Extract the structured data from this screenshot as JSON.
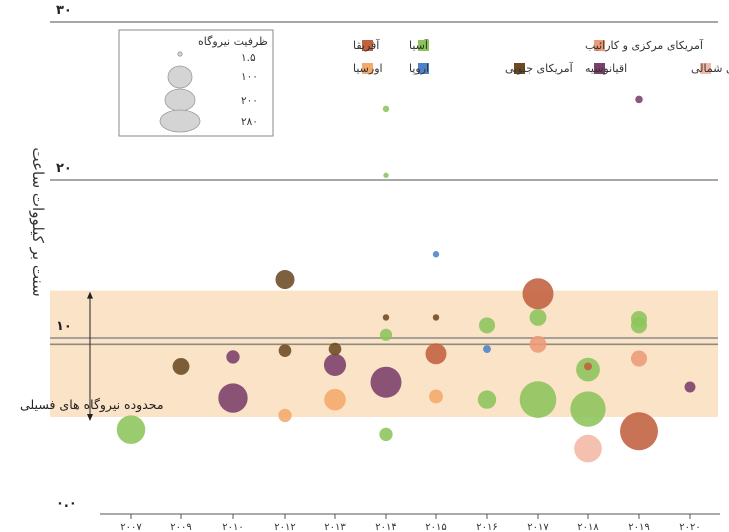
{
  "chart_data": {
    "type": "scatter",
    "ylabel": "سنت بر کیلووات ساعت",
    "y_ticks": [
      "۰.۰",
      "۱۰",
      "۲۰",
      "۳۰"
    ],
    "y_tick_values": [
      0,
      10,
      20,
      30
    ],
    "ylim": [
      0,
      30
    ],
    "x_ticks": [
      "۲۰۰۷",
      "۲۰۰۹",
      "۲۰۱۰",
      "۲۰۱۲",
      "۲۰۱۳",
      "۲۰۱۴",
      "۲۰۱۵",
      "۲۰۱۶",
      "۲۰۱۷",
      "۲۰۱۸",
      "۲۰۱۹",
      "۲۰۲۰"
    ],
    "fossil_range": {
      "label": "محدوده نیروگاه های فسیلی",
      "y_min": 5.0,
      "y_max": 13.0,
      "reference_y": 9.6
    },
    "size_legend": {
      "title": "ظرفیت نیروگاه",
      "entries": [
        {
          "label": "۱.۵",
          "capacity": 1.5
        },
        {
          "label": "۱۰۰",
          "capacity": 100
        },
        {
          "label": "۲۰۰",
          "capacity": 200
        },
        {
          "label": "۲۸۰",
          "capacity": 280
        }
      ]
    },
    "legend_position": "top",
    "series": [
      {
        "name": "آفریقا",
        "color": "#c0603f"
      },
      {
        "name": "آسیا",
        "color": "#8cc45a"
      },
      {
        "name": "آمریکای مرکزی و کارائیب",
        "color": "#ec9a78"
      },
      {
        "name": "اورسیا",
        "color": "#f4a96a"
      },
      {
        "name": "اروپا",
        "color": "#4c83c8"
      },
      {
        "name": "آمریکای جنوبی",
        "color": "#6b4a22"
      },
      {
        "name": "اقیانوسیه",
        "color": "#7a3f6a"
      },
      {
        "name": "آمریکای شمالی",
        "color": "#f2b8a6"
      }
    ],
    "points": [
      {
        "year": "۲۰۰۷",
        "y": 4.2,
        "region": "آسیا",
        "capacity": 150
      },
      {
        "year": "۲۰۰۹",
        "y": 8.2,
        "region": "آمریکای جنوبی",
        "capacity": 45
      },
      {
        "year": "۲۰۱۰",
        "y": 8.8,
        "region": "اقیانوسیه",
        "capacity": 25
      },
      {
        "year": "۲۰۱۰",
        "y": 6.2,
        "region": "اقیانوسیه",
        "capacity": 160
      },
      {
        "year": "۲۰۱۲",
        "y": 13.7,
        "region": "آمریکای جنوبی",
        "capacity": 60
      },
      {
        "year": "۲۰۱۲",
        "y": 9.2,
        "region": "آمریکای جنوبی",
        "capacity": 22
      },
      {
        "year": "۲۰۱۲",
        "y": 5.1,
        "region": "اورسیا",
        "capacity": 25
      },
      {
        "year": "۲۰۱۳",
        "y": 9.3,
        "region": "آمریکای جنوبی",
        "capacity": 22
      },
      {
        "year": "۲۰۱۳",
        "y": 8.3,
        "region": "اقیانوسیه",
        "capacity": 85
      },
      {
        "year": "۲۰۱۳",
        "y": 6.1,
        "region": "اورسیا",
        "capacity": 80
      },
      {
        "year": "۲۰۱۴",
        "y": 24.5,
        "region": "آسیا",
        "capacity": 3
      },
      {
        "year": "۲۰۱۴",
        "y": 20.3,
        "region": "آسیا",
        "capacity": 1.5
      },
      {
        "year": "۲۰۱۴",
        "y": 11.3,
        "region": "آمریکای جنوبی",
        "capacity": 3
      },
      {
        "year": "۲۰۱۴",
        "y": 10.2,
        "region": "آسیا",
        "capacity": 20
      },
      {
        "year": "۲۰۱۴",
        "y": 7.2,
        "region": "اقیانوسیه",
        "capacity": 180
      },
      {
        "year": "۲۰۱۴",
        "y": 3.9,
        "region": "آسیا",
        "capacity": 25
      },
      {
        "year": "۲۰۱۵",
        "y": 15.3,
        "region": "اروپا",
        "capacity": 3
      },
      {
        "year": "۲۰۱۵",
        "y": 11.3,
        "region": "آمریکای جنوبی",
        "capacity": 3
      },
      {
        "year": "۲۰۱۵",
        "y": 9.0,
        "region": "آفریقا",
        "capacity": 75
      },
      {
        "year": "۲۰۱۵",
        "y": 6.3,
        "region": "اورسیا",
        "capacity": 28
      },
      {
        "year": "۲۰۱۶",
        "y": 10.8,
        "region": "آسیا",
        "capacity": 40
      },
      {
        "year": "۲۰۱۶",
        "y": 9.3,
        "region": "اروپا",
        "capacity": 6
      },
      {
        "year": "۲۰۱۶",
        "y": 6.1,
        "region": "آسیا",
        "capacity": 55
      },
      {
        "year": "۲۰۱۷",
        "y": 12.8,
        "region": "آفریقا",
        "capacity": 180
      },
      {
        "year": "۲۰۱۷",
        "y": 11.3,
        "region": "آسیا",
        "capacity": 45
      },
      {
        "year": "۲۰۱۷",
        "y": 9.6,
        "region": "آمریکای مرکزی و کارائیب",
        "capacity": 45
      },
      {
        "year": "۲۰۱۷",
        "y": 6.1,
        "region": "آسیا",
        "capacity": 260
      },
      {
        "year": "۲۰۱۸",
        "y": 8.0,
        "region": "آسیا",
        "capacity": 100
      },
      {
        "year": "۲۰۱۸",
        "y": 8.2,
        "region": "آفریقا",
        "capacity": 6
      },
      {
        "year": "۲۰۱۸",
        "y": 5.5,
        "region": "آسیا",
        "capacity": 240
      },
      {
        "year": "۲۰۱۸",
        "y": 3.0,
        "region": "آمریکای شمالی",
        "capacity": 140
      },
      {
        "year": "۲۰۱۹",
        "y": 25.1,
        "region": "اقیانوسیه",
        "capacity": 5
      },
      {
        "year": "۲۰۱۹",
        "y": 11.2,
        "region": "آسیا",
        "capacity": 40
      },
      {
        "year": "۲۰۱۹",
        "y": 10.8,
        "region": "آسیا",
        "capacity": 40
      },
      {
        "year": "۲۰۱۹",
        "y": 8.7,
        "region": "آمریکای مرکزی و کارائیب",
        "capacity": 40
      },
      {
        "year": "۲۰۱۹",
        "y": 4.1,
        "region": "آفریقا",
        "capacity": 280
      },
      {
        "year": "۲۰۲۰",
        "y": 6.9,
        "region": "اقیانوسیه",
        "capacity": 15
      }
    ]
  }
}
